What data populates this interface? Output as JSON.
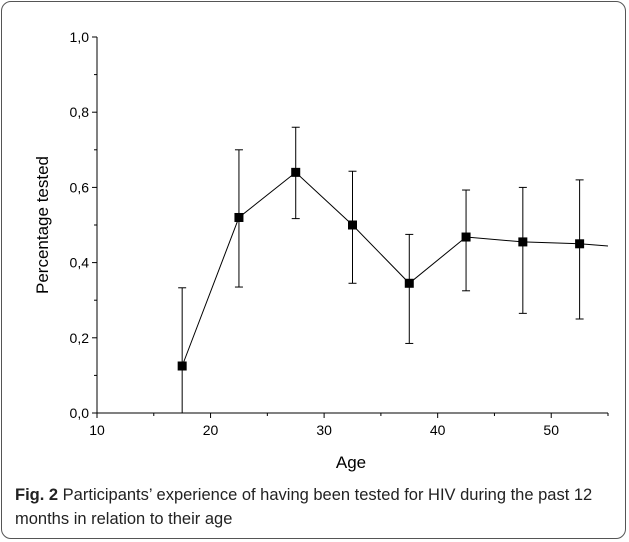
{
  "chart_data": {
    "type": "line",
    "xlabel": "Age",
    "ylabel": "Percentage tested",
    "xlim": [
      10,
      55
    ],
    "ylim": [
      0.0,
      1.0
    ],
    "x_ticks": [
      10,
      20,
      30,
      40,
      50
    ],
    "x_tick_labels": [
      "10",
      "20",
      "30",
      "40",
      "50"
    ],
    "y_ticks": [
      0.0,
      0.2,
      0.4,
      0.6,
      0.8,
      1.0
    ],
    "y_tick_labels": [
      "0,0",
      "0,2",
      "0,4",
      "0,6",
      "0,8",
      "1,0"
    ],
    "grid": false,
    "series": [
      {
        "x": [
          17.5,
          22.5,
          27.5,
          32.5,
          37.5,
          42.5,
          47.5,
          52.5
        ],
        "y": [
          0.125,
          0.52,
          0.64,
          0.5,
          0.345,
          0.468,
          0.455,
          0.45
        ],
        "err_low": [
          0.0,
          0.335,
          0.517,
          0.345,
          0.185,
          0.325,
          0.265,
          0.25
        ],
        "err_high": [
          0.333,
          0.7,
          0.76,
          0.643,
          0.475,
          0.593,
          0.6,
          0.62
        ],
        "line_end": {
          "x": 55,
          "y": 0.444
        }
      }
    ]
  },
  "caption": {
    "label": "Fig. 2",
    "text": " Participants’ experience of having been tested for HIV during the past 12 months in relation to their age"
  }
}
